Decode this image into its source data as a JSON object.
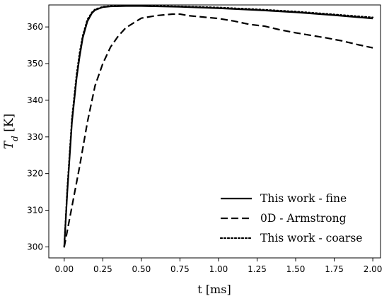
{
  "chart_data": {
    "type": "line",
    "xlabel": "t [ms]",
    "ylabel": "T_d [K]",
    "xlim": [
      -0.1,
      2.05
    ],
    "ylim": [
      297,
      366
    ],
    "grid": false,
    "legend_position": "bottom-right",
    "x_ticks": [
      0.0,
      0.25,
      0.5,
      0.75,
      1.0,
      1.25,
      1.5,
      1.75,
      2.0
    ],
    "x_tick_labels": [
      "0.00",
      "0.25",
      "0.50",
      "0.75",
      "1.00",
      "1.25",
      "1.50",
      "1.75",
      "2.00"
    ],
    "y_ticks": [
      300,
      310,
      320,
      330,
      340,
      350,
      360
    ],
    "y_tick_labels": [
      "300",
      "310",
      "320",
      "330",
      "340",
      "350",
      "360"
    ],
    "series": [
      {
        "name": "This work - fine",
        "style": "solid",
        "color": "#000000",
        "x": [
          0.0,
          0.02,
          0.05,
          0.08,
          0.1,
          0.12,
          0.15,
          0.18,
          0.2,
          0.25,
          0.3,
          0.4,
          0.5,
          0.75,
          1.0,
          1.25,
          1.5,
          1.75,
          2.0
        ],
        "y": [
          300,
          315,
          334,
          346,
          352,
          357,
          361.5,
          363.8,
          364.6,
          365.4,
          365.6,
          365.7,
          365.7,
          365.5,
          365.1,
          364.6,
          364.0,
          363.2,
          362.3
        ]
      },
      {
        "name": "0D - Armstrong",
        "style": "dashed",
        "color": "#000000",
        "x": [
          0.0,
          0.05,
          0.1,
          0.15,
          0.2,
          0.25,
          0.3,
          0.35,
          0.4,
          0.5,
          0.6,
          0.7,
          0.75,
          0.8,
          0.9,
          1.0,
          1.1,
          1.2,
          1.3,
          1.4,
          1.5,
          1.6,
          1.7,
          1.8,
          1.9,
          2.0
        ],
        "y": [
          300,
          311,
          322,
          334,
          344,
          350,
          354.5,
          357.5,
          359.8,
          362.4,
          363.1,
          363.5,
          363.5,
          363.1,
          362.7,
          362.3,
          361.6,
          360.7,
          360.2,
          359.2,
          358.4,
          357.7,
          357.0,
          356.2,
          355.2,
          354.3
        ]
      },
      {
        "name": "This work - coarse",
        "style": "dotted",
        "color": "#000000",
        "x": [
          0.0,
          0.02,
          0.05,
          0.08,
          0.1,
          0.12,
          0.15,
          0.18,
          0.2,
          0.25,
          0.3,
          0.4,
          0.5,
          0.75,
          1.0,
          1.25,
          1.5,
          1.75,
          2.0
        ],
        "y": [
          300,
          316,
          335,
          347,
          353,
          357.6,
          362,
          364,
          364.8,
          365.5,
          365.7,
          365.8,
          365.8,
          365.6,
          365.3,
          364.8,
          364.2,
          363.4,
          362.6
        ]
      }
    ]
  }
}
